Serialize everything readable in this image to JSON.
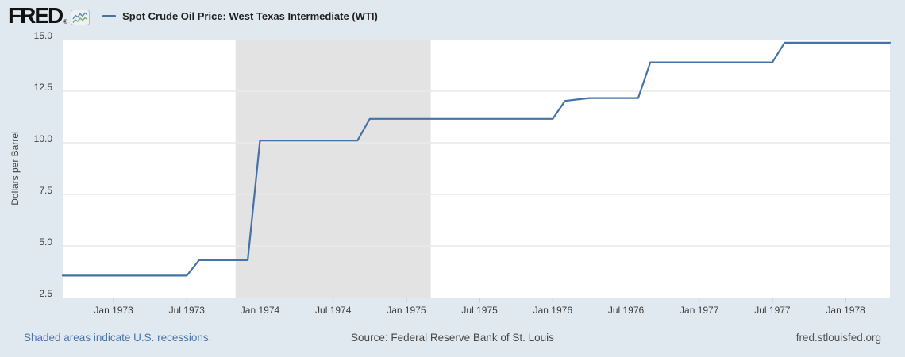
{
  "header": {
    "logo_text": "FRED",
    "logo_trademark": "®",
    "series_label": "Spot Crude Oil Price: West Texas Intermediate (WTI)"
  },
  "footer": {
    "note": "Shaded areas indicate U.S. recessions.",
    "source": "Source: Federal Reserve Bank of St. Louis",
    "site": "fred.stlouisfed.org"
  },
  "colors": {
    "background": "#e1e9f0",
    "plot_background": "#ffffff",
    "recession_band": "#e3e3e3",
    "gridline": "#dedede",
    "gridline_on_band": "#ececec",
    "axis_tick": "#b6c2cc",
    "axis_text": "#3f3f3f",
    "line": "#4572a7"
  },
  "chart_data": {
    "type": "line",
    "title": "Spot Crude Oil Price: West Texas Intermediate (WTI)",
    "xlabel": "",
    "ylabel": "Dollars per Barrel",
    "ylim": [
      2.5,
      15.0
    ],
    "x_range": [
      "1972-09",
      "1978-04"
    ],
    "grid": "horizontal",
    "legend_position": "top-left",
    "line_color": "#4572a7",
    "y_ticks": [
      {
        "label": "2.5",
        "value": 2.5
      },
      {
        "label": "5.0",
        "value": 5.0
      },
      {
        "label": "7.5",
        "value": 7.5
      },
      {
        "label": "10.0",
        "value": 10.0
      },
      {
        "label": "12.5",
        "value": 12.5
      },
      {
        "label": "15.0",
        "value": 15.0
      }
    ],
    "x_ticks": [
      {
        "label": "Jan 1973",
        "date": "1973-01"
      },
      {
        "label": "Jul 1973",
        "date": "1973-07"
      },
      {
        "label": "Jan 1974",
        "date": "1974-01"
      },
      {
        "label": "Jul 1974",
        "date": "1974-07"
      },
      {
        "label": "Jan 1975",
        "date": "1975-01"
      },
      {
        "label": "Jul 1975",
        "date": "1975-07"
      },
      {
        "label": "Jan 1976",
        "date": "1976-01"
      },
      {
        "label": "Jul 1976",
        "date": "1976-07"
      },
      {
        "label": "Jan 1977",
        "date": "1977-01"
      },
      {
        "label": "Jul 1977",
        "date": "1977-07"
      },
      {
        "label": "Jan 1978",
        "date": "1978-01"
      }
    ],
    "recessions": [
      {
        "start": "1973-11",
        "end": "1975-03"
      }
    ],
    "series": [
      {
        "name": "Spot Crude Oil Price: West Texas Intermediate (WTI)",
        "frequency": "monthly",
        "points": [
          [
            "1972-09",
            3.56
          ],
          [
            "1972-10",
            3.56
          ],
          [
            "1972-11",
            3.56
          ],
          [
            "1972-12",
            3.56
          ],
          [
            "1973-01",
            3.56
          ],
          [
            "1973-02",
            3.56
          ],
          [
            "1973-03",
            3.56
          ],
          [
            "1973-04",
            3.56
          ],
          [
            "1973-05",
            3.56
          ],
          [
            "1973-06",
            3.56
          ],
          [
            "1973-07",
            3.56
          ],
          [
            "1973-08",
            4.31
          ],
          [
            "1973-09",
            4.31
          ],
          [
            "1973-10",
            4.31
          ],
          [
            "1973-11",
            4.31
          ],
          [
            "1973-12",
            4.31
          ],
          [
            "1974-01",
            10.11
          ],
          [
            "1974-02",
            10.11
          ],
          [
            "1974-03",
            10.11
          ],
          [
            "1974-04",
            10.11
          ],
          [
            "1974-05",
            10.11
          ],
          [
            "1974-06",
            10.11
          ],
          [
            "1974-07",
            10.11
          ],
          [
            "1974-08",
            10.11
          ],
          [
            "1974-09",
            10.11
          ],
          [
            "1974-10",
            11.16
          ],
          [
            "1974-11",
            11.16
          ],
          [
            "1974-12",
            11.16
          ],
          [
            "1975-01",
            11.16
          ],
          [
            "1975-02",
            11.16
          ],
          [
            "1975-03",
            11.16
          ],
          [
            "1975-04",
            11.16
          ],
          [
            "1975-05",
            11.16
          ],
          [
            "1975-06",
            11.16
          ],
          [
            "1975-07",
            11.16
          ],
          [
            "1975-08",
            11.16
          ],
          [
            "1975-09",
            11.16
          ],
          [
            "1975-10",
            11.16
          ],
          [
            "1975-11",
            11.16
          ],
          [
            "1975-12",
            11.16
          ],
          [
            "1976-01",
            11.16
          ],
          [
            "1976-02",
            12.03
          ],
          [
            "1976-03",
            12.1
          ],
          [
            "1976-04",
            12.17
          ],
          [
            "1976-05",
            12.17
          ],
          [
            "1976-06",
            12.17
          ],
          [
            "1976-07",
            12.17
          ],
          [
            "1976-08",
            12.17
          ],
          [
            "1976-09",
            13.9
          ],
          [
            "1976-10",
            13.9
          ],
          [
            "1976-11",
            13.9
          ],
          [
            "1976-12",
            13.9
          ],
          [
            "1977-01",
            13.9
          ],
          [
            "1977-02",
            13.9
          ],
          [
            "1977-03",
            13.9
          ],
          [
            "1977-04",
            13.9
          ],
          [
            "1977-05",
            13.9
          ],
          [
            "1977-06",
            13.9
          ],
          [
            "1977-07",
            13.9
          ],
          [
            "1977-08",
            14.85
          ],
          [
            "1977-09",
            14.85
          ],
          [
            "1977-10",
            14.85
          ],
          [
            "1977-11",
            14.85
          ],
          [
            "1977-12",
            14.85
          ],
          [
            "1978-01",
            14.85
          ],
          [
            "1978-02",
            14.85
          ],
          [
            "1978-03",
            14.85
          ],
          [
            "1978-04",
            14.85
          ]
        ]
      }
    ]
  }
}
